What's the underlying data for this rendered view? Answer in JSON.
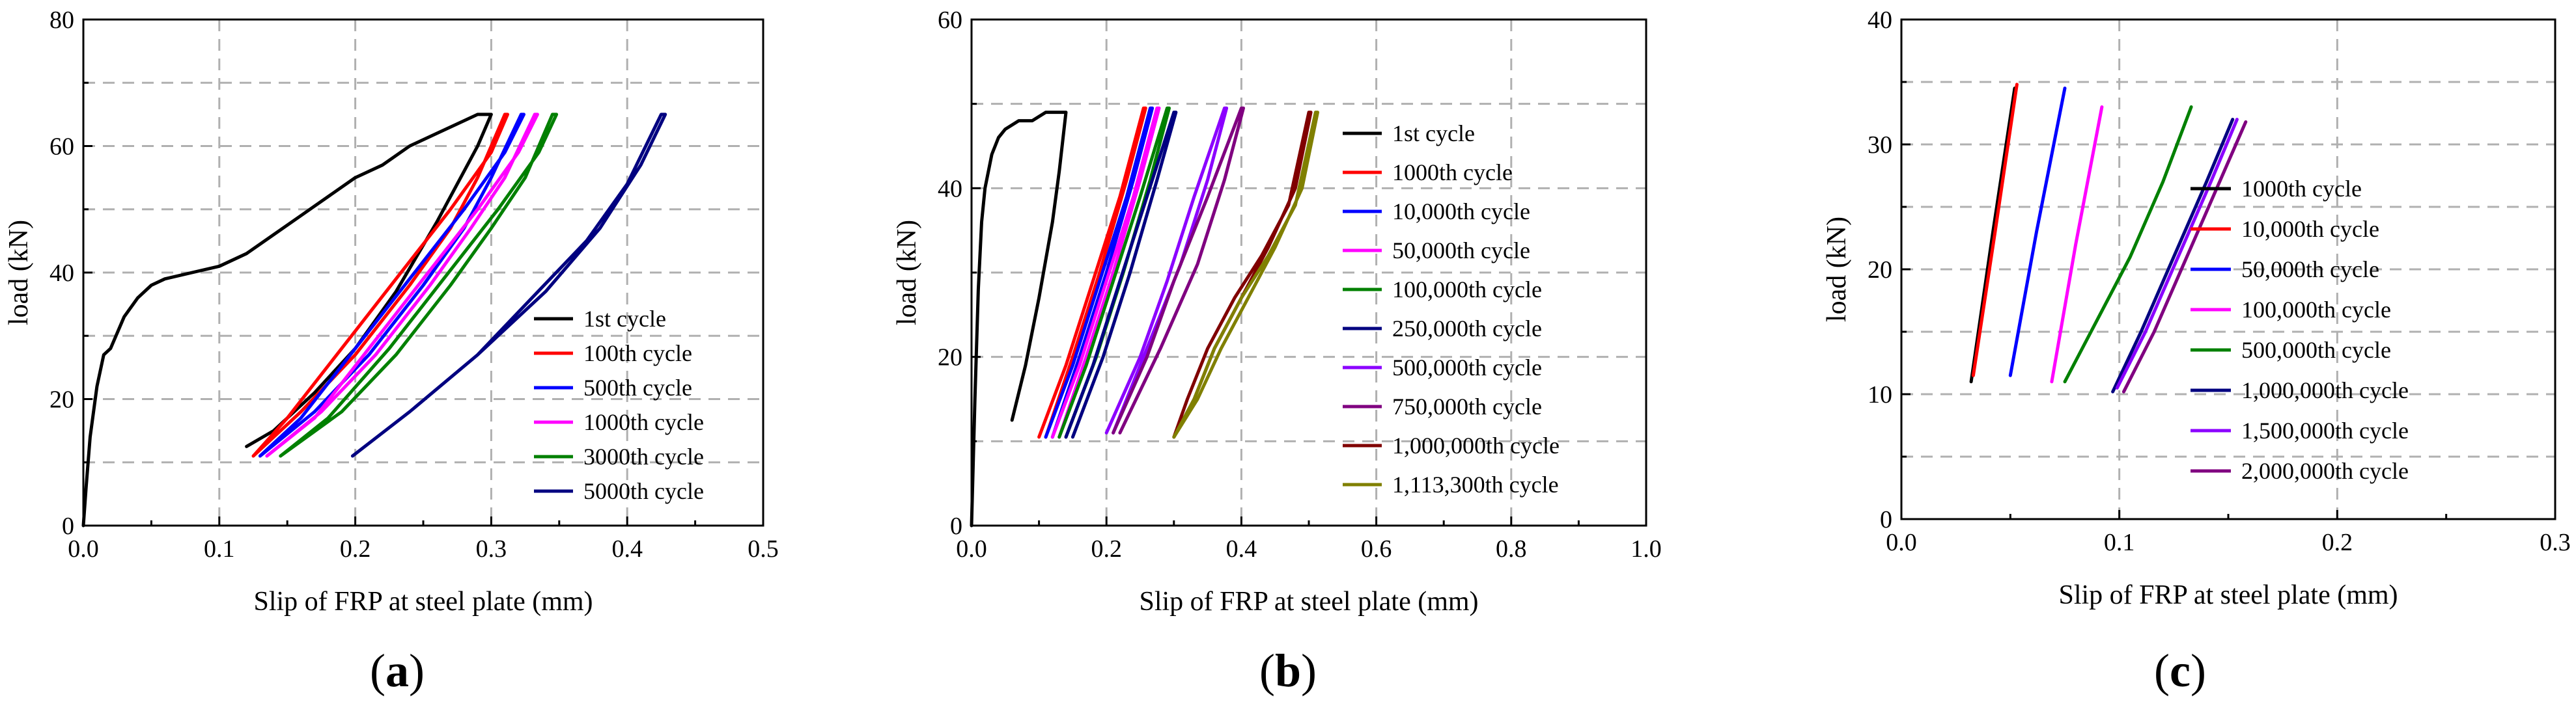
{
  "chart_data": [
    {
      "type": "line",
      "label": "a",
      "xlabel": "Slip of FRP at steel plate (mm)",
      "ylabel": "load (kN)",
      "xlim": [
        0,
        0.5
      ],
      "ylim": [
        0,
        80
      ],
      "xticks": [
        "0.0",
        "0.1",
        "0.2",
        "0.3",
        "0.4",
        "0.5"
      ],
      "yticks": [
        "0",
        "20",
        "40",
        "60",
        "80"
      ],
      "legend_position": "lower-right",
      "series": [
        {
          "name": "1st cycle",
          "color": "#000000",
          "x": [
            0.0,
            0.002,
            0.005,
            0.01,
            0.015,
            0.02,
            0.03,
            0.04,
            0.05,
            0.06,
            0.08,
            0.1,
            0.12,
            0.14,
            0.16,
            0.18,
            0.2,
            0.22,
            0.24,
            0.26,
            0.28,
            0.29,
            0.3,
            0.29,
            0.26,
            0.23,
            0.2,
            0.17,
            0.14,
            0.12
          ],
          "y": [
            0,
            6,
            14,
            22,
            27,
            28,
            33,
            36,
            38,
            39,
            40,
            41,
            43,
            46,
            49,
            52,
            55,
            57,
            60,
            62,
            64,
            65,
            65,
            60,
            48,
            37,
            28,
            21,
            15,
            12.5
          ]
        },
        {
          "name": "100th cycle",
          "color": "#ff0000",
          "x": [
            0.125,
            0.16,
            0.2,
            0.24,
            0.27,
            0.29,
            0.31,
            0.312,
            0.3,
            0.27,
            0.23,
            0.19,
            0.15,
            0.125
          ],
          "y": [
            11,
            18,
            27,
            38,
            47,
            55,
            65,
            65,
            59,
            50,
            39,
            28,
            17,
            11
          ]
        },
        {
          "name": "500th cycle",
          "color": "#0000ff",
          "x": [
            0.13,
            0.17,
            0.21,
            0.25,
            0.28,
            0.3,
            0.322,
            0.324,
            0.31,
            0.28,
            0.24,
            0.2,
            0.16,
            0.13
          ],
          "y": [
            11,
            18,
            27,
            38,
            47,
            55,
            65,
            65,
            59,
            50,
            39,
            28,
            17,
            11
          ]
        },
        {
          "name": "1000th cycle",
          "color": "#ff00ff",
          "x": [
            0.135,
            0.175,
            0.215,
            0.255,
            0.285,
            0.31,
            0.332,
            0.334,
            0.32,
            0.29,
            0.25,
            0.21,
            0.17,
            0.135
          ],
          "y": [
            11,
            18,
            27,
            38,
            47,
            55,
            65,
            65,
            59,
            50,
            39,
            28,
            17,
            11
          ]
        },
        {
          "name": "3000th cycle",
          "color": "#008000",
          "x": [
            0.145,
            0.19,
            0.23,
            0.27,
            0.3,
            0.325,
            0.345,
            0.348,
            0.335,
            0.305,
            0.265,
            0.225,
            0.18,
            0.145
          ],
          "y": [
            11,
            18,
            27,
            38,
            47,
            55,
            65,
            65,
            59,
            50,
            39,
            28,
            17,
            11
          ]
        },
        {
          "name": "5000th cycle",
          "color": "#000080",
          "x": [
            0.198,
            0.24,
            0.29,
            0.33,
            0.37,
            0.4,
            0.425,
            0.428,
            0.41,
            0.38,
            0.34,
            0.29,
            0.24,
            0.198
          ],
          "y": [
            11,
            18,
            27,
            36,
            45,
            54,
            65,
            65,
            57,
            47,
            37,
            27,
            18,
            11
          ]
        }
      ]
    },
    {
      "type": "line",
      "label": "b",
      "xlabel": "Slip of FRP at steel plate (mm)",
      "ylabel": "load (kN)",
      "xlim": [
        0,
        1.0
      ],
      "ylim": [
        0,
        60
      ],
      "xticks": [
        "0.0",
        "0.2",
        "0.4",
        "0.6",
        "0.8",
        "1.0"
      ],
      "yticks": [
        "0",
        "20",
        "40",
        "60"
      ],
      "legend_position": "right",
      "series": [
        {
          "name": "1st cycle",
          "color": "#000000",
          "x": [
            0.0,
            0.005,
            0.01,
            0.015,
            0.02,
            0.03,
            0.04,
            0.05,
            0.07,
            0.09,
            0.11,
            0.13,
            0.14,
            0.13,
            0.12,
            0.1,
            0.08,
            0.06
          ],
          "y": [
            0,
            15,
            28,
            36,
            40,
            44,
            46,
            47,
            48,
            48,
            49,
            49,
            49,
            42,
            36,
            27,
            19,
            12.5
          ]
        },
        {
          "name": "1000th cycle",
          "color": "#ff0000",
          "x": [
            0.1,
            0.14,
            0.18,
            0.22,
            0.255,
            0.258,
            0.23,
            0.19,
            0.15,
            0.11
          ],
          "y": [
            10.5,
            19,
            29,
            39,
            49.5,
            49.5,
            41,
            30,
            20,
            10.5
          ]
        },
        {
          "name": "10,000th cycle",
          "color": "#0000ff",
          "x": [
            0.11,
            0.15,
            0.19,
            0.23,
            0.265,
            0.268,
            0.24,
            0.2,
            0.16,
            0.12
          ],
          "y": [
            10.5,
            19,
            29,
            39,
            49.5,
            49.5,
            41,
            30,
            20,
            10.5
          ]
        },
        {
          "name": "50,000th cycle",
          "color": "#ff00ff",
          "x": [
            0.12,
            0.16,
            0.2,
            0.24,
            0.275,
            0.278,
            0.25,
            0.21,
            0.17,
            0.13
          ],
          "y": [
            10.5,
            19,
            29,
            39,
            49.5,
            49.5,
            41,
            30,
            20,
            10.5
          ]
        },
        {
          "name": "100,000th cycle",
          "color": "#008000",
          "x": [
            0.13,
            0.17,
            0.21,
            0.25,
            0.29,
            0.293,
            0.265,
            0.225,
            0.185,
            0.14
          ],
          "y": [
            10.5,
            19,
            29,
            39,
            49.5,
            49.5,
            41,
            30,
            20,
            10.5
          ]
        },
        {
          "name": "250,000th cycle",
          "color": "#000080",
          "x": [
            0.14,
            0.18,
            0.22,
            0.26,
            0.3,
            0.303,
            0.275,
            0.235,
            0.195,
            0.15
          ],
          "y": [
            10.5,
            19,
            29,
            39,
            49,
            49,
            41,
            30,
            20,
            10.5
          ]
        },
        {
          "name": "500,000th cycle",
          "color": "#8b00ff",
          "x": [
            0.2,
            0.25,
            0.29,
            0.33,
            0.375,
            0.378,
            0.35,
            0.31,
            0.26,
            0.21
          ],
          "y": [
            11,
            20,
            29,
            39,
            49.5,
            49.5,
            41,
            31,
            21,
            11
          ]
        },
        {
          "name": "750,000th cycle",
          "color": "#800080",
          "x": [
            0.21,
            0.26,
            0.3,
            0.35,
            0.4,
            0.403,
            0.375,
            0.335,
            0.28,
            0.22
          ],
          "y": [
            11,
            20,
            29,
            39,
            49.5,
            49.5,
            41,
            31,
            21,
            11
          ]
        },
        {
          "name": "1,000,000th cycle",
          "color": "#800000",
          "x": [
            0.3,
            0.32,
            0.35,
            0.39,
            0.43,
            0.47,
            0.5,
            0.503,
            0.48,
            0.44,
            0.4,
            0.36,
            0.33,
            0.3
          ],
          "y": [
            10.5,
            15,
            21,
            27,
            32,
            38,
            49,
            49,
            40,
            33,
            27,
            21,
            15,
            10.5
          ]
        },
        {
          "name": "1,113,300th cycle",
          "color": "#808000",
          "x": [
            0.3,
            0.33,
            0.36,
            0.4,
            0.44,
            0.48,
            0.51,
            0.513,
            0.49,
            0.45,
            0.41,
            0.37,
            0.335,
            0.3
          ],
          "y": [
            10.5,
            15,
            21,
            27,
            32,
            38,
            49,
            49,
            40,
            33,
            27,
            21,
            15,
            10.5
          ]
        }
      ]
    },
    {
      "type": "line",
      "label": "c",
      "xlabel": "Slip of FRP at steel plate (mm)",
      "ylabel": "load (kN)",
      "xlim": [
        0,
        0.3
      ],
      "ylim": [
        0,
        40
      ],
      "xticks": [
        "0.0",
        "0.1",
        "0.2",
        "0.3"
      ],
      "yticks": [
        "0",
        "10",
        "20",
        "30",
        "40"
      ],
      "legend_position": "right",
      "series": [
        {
          "name": "1000th cycle",
          "color": "#000000",
          "x": [
            0.032,
            0.042,
            0.052
          ],
          "y": [
            11,
            23,
            34.5
          ]
        },
        {
          "name": "10,000th cycle",
          "color": "#ff0000",
          "x": [
            0.033,
            0.043,
            0.053
          ],
          "y": [
            11.5,
            23,
            34.8
          ]
        },
        {
          "name": "50,000th cycle",
          "color": "#0000ff",
          "x": [
            0.05,
            0.062,
            0.075
          ],
          "y": [
            11.5,
            23,
            34.5
          ]
        },
        {
          "name": "100,000th cycle",
          "color": "#ff00ff",
          "x": [
            0.069,
            0.08,
            0.092
          ],
          "y": [
            11,
            22,
            33
          ]
        },
        {
          "name": "500,000th cycle",
          "color": "#008000",
          "x": [
            0.075,
            0.09,
            0.105,
            0.12,
            0.133
          ],
          "y": [
            11,
            16,
            21,
            27,
            33
          ]
        },
        {
          "name": "1,000,000th cycle",
          "color": "#000080",
          "x": [
            0.097,
            0.11,
            0.125,
            0.14,
            0.152
          ],
          "y": [
            10.2,
            15,
            21,
            27,
            32
          ]
        },
        {
          "name": "1,500,000th cycle",
          "color": "#8b00ff",
          "x": [
            0.099,
            0.112,
            0.127,
            0.142,
            0.154
          ],
          "y": [
            10.5,
            15,
            21,
            27,
            32
          ]
        },
        {
          "name": "2,000,000th cycle",
          "color": "#800080",
          "x": [
            0.102,
            0.116,
            0.131,
            0.146,
            0.158
          ],
          "y": [
            10.2,
            15,
            21,
            27,
            31.8
          ]
        }
      ]
    }
  ]
}
